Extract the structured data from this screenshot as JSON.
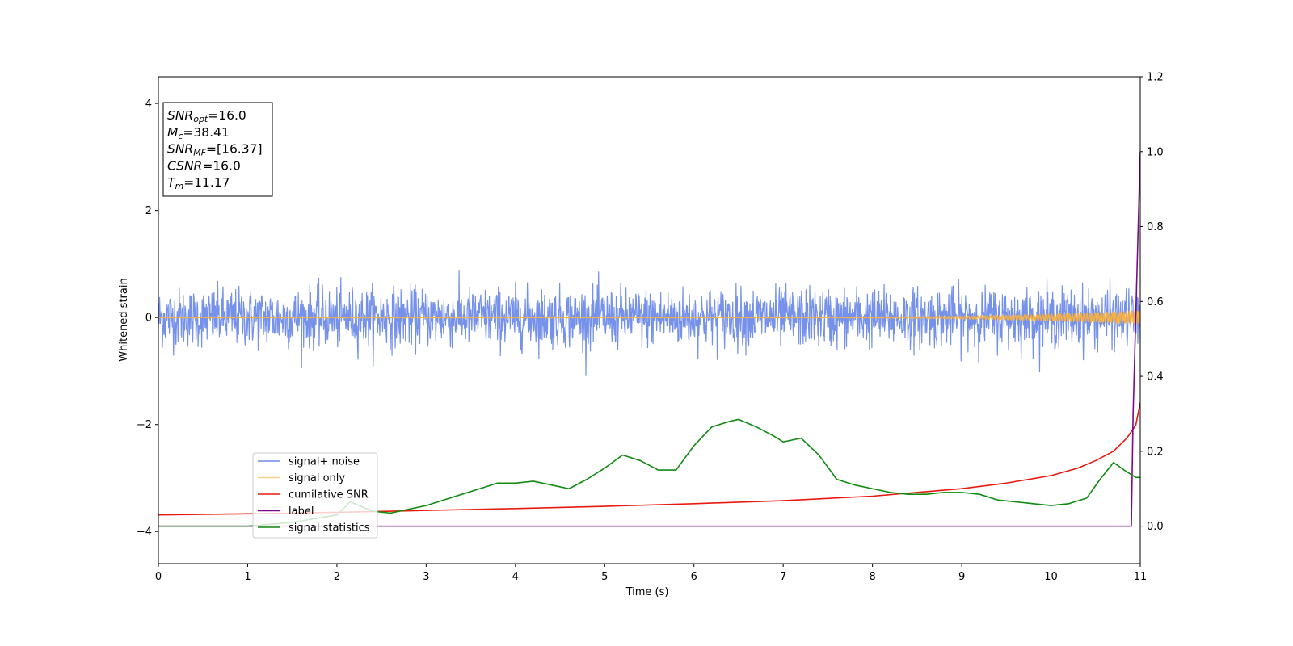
{
  "chart_data": {
    "type": "line",
    "xlabel": "Time (s)",
    "ylabel_left": "Whitened strain",
    "xlim": [
      0,
      11
    ],
    "ylim_left": [
      -4.6,
      4.5
    ],
    "ylim_right": [
      -0.1,
      1.2
    ],
    "x_ticks": [
      "0",
      "1",
      "2",
      "3",
      "4",
      "5",
      "6",
      "7",
      "8",
      "9",
      "10",
      "11"
    ],
    "y_ticks_left": [
      {
        "value": -4,
        "label": "−4"
      },
      {
        "value": -2,
        "label": "−2"
      },
      {
        "value": 0,
        "label": "0"
      },
      {
        "value": 2,
        "label": "2"
      },
      {
        "value": 4,
        "label": "4"
      }
    ],
    "y_ticks_right": [
      {
        "value": 0.0,
        "label": "0.0"
      },
      {
        "value": 0.2,
        "label": "0.2"
      },
      {
        "value": 0.4,
        "label": "0.4"
      },
      {
        "value": 0.6,
        "label": "0.6"
      },
      {
        "value": 0.8,
        "label": "0.8"
      },
      {
        "value": 1.0,
        "label": "1.0"
      },
      {
        "value": 1.2,
        "label": "1.2"
      }
    ],
    "legend_position": "lower-left",
    "series": [
      {
        "name": "signal+ noise",
        "axis": "left",
        "color": "#6f8be8",
        "kind": "noise",
        "amplitude": 0.55
      },
      {
        "name": "signal only",
        "axis": "left",
        "color": "#f5b041",
        "kind": "chirp"
      },
      {
        "name": "cumilative SNR",
        "axis": "right",
        "color": "#e8190e",
        "x": [
          0,
          1,
          2,
          3,
          4,
          5,
          6,
          7,
          8,
          9,
          9.5,
          10,
          10.3,
          10.5,
          10.7,
          10.85,
          10.95,
          11.0
        ],
        "y": [
          0.03,
          0.033,
          0.037,
          0.042,
          0.047,
          0.053,
          0.06,
          0.068,
          0.08,
          0.1,
          0.115,
          0.135,
          0.155,
          0.175,
          0.2,
          0.235,
          0.27,
          0.33
        ]
      },
      {
        "name": "label",
        "axis": "right",
        "color": "#7a0a8a",
        "x": [
          0,
          10.9,
          10.92,
          11.0
        ],
        "y": [
          0.0,
          0.0,
          0.3,
          1.0
        ]
      },
      {
        "name": "signal statistics",
        "axis": "right",
        "color": "#108a10",
        "x": [
          0,
          0.5,
          1,
          1.5,
          2,
          2.15,
          2.4,
          2.6,
          2.8,
          3,
          3.2,
          3.4,
          3.6,
          3.8,
          4,
          4.2,
          4.4,
          4.6,
          4.8,
          5,
          5.2,
          5.4,
          5.6,
          5.8,
          6,
          6.2,
          6.4,
          6.5,
          6.7,
          6.9,
          7,
          7.2,
          7.4,
          7.6,
          7.8,
          8,
          8.2,
          8.4,
          8.6,
          8.8,
          9,
          9.2,
          9.4,
          9.6,
          9.8,
          10,
          10.2,
          10.4,
          10.55,
          10.7,
          10.85,
          10.95,
          11.0
        ],
        "y": [
          0.0,
          0.0,
          0.0,
          0.01,
          0.03,
          0.065,
          0.04,
          0.035,
          0.045,
          0.055,
          0.07,
          0.085,
          0.1,
          0.115,
          0.115,
          0.12,
          0.11,
          0.1,
          0.125,
          0.155,
          0.19,
          0.175,
          0.15,
          0.15,
          0.215,
          0.265,
          0.28,
          0.285,
          0.265,
          0.24,
          0.225,
          0.235,
          0.19,
          0.125,
          0.11,
          0.1,
          0.09,
          0.085,
          0.085,
          0.09,
          0.09,
          0.085,
          0.07,
          0.065,
          0.06,
          0.055,
          0.06,
          0.075,
          0.125,
          0.17,
          0.145,
          0.13,
          0.13
        ]
      }
    ],
    "annotation_lines": [
      {
        "key": "SNR",
        "sub": "opt",
        "value": "=16.0"
      },
      {
        "key": "M",
        "sub": "c",
        "value": "=38.41"
      },
      {
        "key": "SNR",
        "sub": "MF",
        "value": "=[16.37]"
      },
      {
        "key": "CSNR",
        "sub": "",
        "value": "=16.0"
      },
      {
        "key": "T",
        "sub": "m",
        "value": "=11.17"
      }
    ]
  }
}
